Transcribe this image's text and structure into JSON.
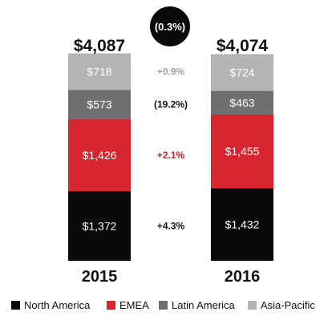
{
  "chart_data": {
    "type": "bar",
    "stacked": true,
    "categories": [
      "2015",
      "2016"
    ],
    "totals": [
      "$4,087",
      "$4,074"
    ],
    "overall_change": "(0.3%)",
    "series": [
      {
        "name": "North America",
        "values": [
          1372,
          1432
        ],
        "labels": [
          "$1,372",
          "$1,432"
        ],
        "change": "+4.3%",
        "color": "#0a0a0a",
        "label_color": "#ffffff"
      },
      {
        "name": "EMEA",
        "values": [
          1426,
          1455
        ],
        "labels": [
          "$1,426",
          "$1,455"
        ],
        "change": "+2.1%",
        "color": "#d7262f",
        "label_color": "#ffffff"
      },
      {
        "name": "Latin America",
        "values": [
          573,
          463
        ],
        "labels": [
          "$573",
          "$463"
        ],
        "change": "(19.2%)",
        "color": "#6f6f6f",
        "label_color": "#ffffff"
      },
      {
        "name": "Asia-Pacific",
        "values": [
          718,
          724
        ],
        "labels": [
          "$718",
          "$724"
        ],
        "change": "+0.9%",
        "color": "#b4b4b4",
        "label_color": "#ffffff"
      }
    ],
    "change_colors": [
      "#111111",
      "#c8202a",
      "#111111",
      "#a0a0a0"
    ],
    "legend_position": "bottom",
    "grid": false
  }
}
